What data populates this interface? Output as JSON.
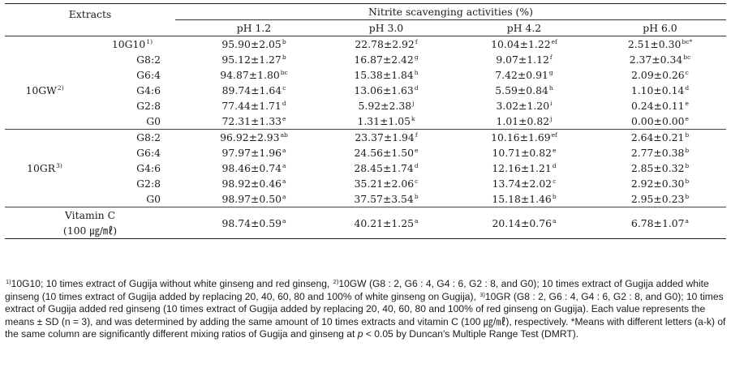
{
  "table": {
    "header": {
      "extracts_label": "Extracts",
      "group_label": "Nitrite scavenging activities (%)",
      "ph_columns": [
        "pH 1.2",
        "pH 3.0",
        "pH 4.2",
        "pH 6.0"
      ]
    },
    "row_10G10": {
      "label": "10G10",
      "sup": "1)",
      "cells": [
        {
          "v": "95.90±2.05",
          "s": "b"
        },
        {
          "v": "22.78±2.92",
          "s": "f"
        },
        {
          "v": "10.04±1.22",
          "s": "ef"
        },
        {
          "v": "2.51±0.30",
          "s": "bc*"
        }
      ]
    },
    "group_10GW": {
      "label": "10GW",
      "sup": "2)",
      "rows": [
        {
          "label": "G8:2",
          "cells": [
            {
              "v": "95.12±1.27",
              "s": "b"
            },
            {
              "v": "16.87±2.42",
              "s": "g"
            },
            {
              "v": "9.07±1.12",
              "s": "f"
            },
            {
              "v": "2.37±0.34",
              "s": "bc"
            }
          ]
        },
        {
          "label": "G6:4",
          "cells": [
            {
              "v": "94.87±1.80",
              "s": "bc"
            },
            {
              "v": "15.38±1.84",
              "s": "h"
            },
            {
              "v": "7.42±0.91",
              "s": "g"
            },
            {
              "v": "2.09±0.26",
              "s": "c"
            }
          ]
        },
        {
          "label": "G4:6",
          "cells": [
            {
              "v": "89.74±1.64",
              "s": "c"
            },
            {
              "v": "13.06±1.63",
              "s": "d"
            },
            {
              "v": "5.59±0.84",
              "s": "h"
            },
            {
              "v": "1.10±0.14",
              "s": "d"
            }
          ]
        },
        {
          "label": "G2:8",
          "cells": [
            {
              "v": "77.44±1.71",
              "s": "d"
            },
            {
              "v": "5.92±2.38",
              "s": "j"
            },
            {
              "v": "3.02±1.20",
              "s": "i"
            },
            {
              "v": "0.24±0.11",
              "s": "e"
            }
          ]
        },
        {
          "label": "G0",
          "cells": [
            {
              "v": "72.31±1.33",
              "s": "e"
            },
            {
              "v": "1.31±1.05",
              "s": "k"
            },
            {
              "v": "1.01±0.82",
              "s": "j"
            },
            {
              "v": "0.00±0.00",
              "s": "e"
            }
          ]
        }
      ]
    },
    "group_10GR": {
      "label": "10GR",
      "sup": "3)",
      "rows": [
        {
          "label": "G8:2",
          "cells": [
            {
              "v": "96.92±2.93",
              "s": "ab"
            },
            {
              "v": "23.37±1.94",
              "s": "f"
            },
            {
              "v": "10.16±1.69",
              "s": "ef"
            },
            {
              "v": "2.64±0.21",
              "s": "b"
            }
          ]
        },
        {
          "label": "G6:4",
          "cells": [
            {
              "v": "97.97±1.96",
              "s": "a"
            },
            {
              "v": "24.56±1.50",
              "s": "e"
            },
            {
              "v": "10.71±0.82",
              "s": "e"
            },
            {
              "v": "2.77±0.38",
              "s": "b"
            }
          ]
        },
        {
          "label": "G4:6",
          "cells": [
            {
              "v": "98.46±0.74",
              "s": "a"
            },
            {
              "v": "28.45±1.74",
              "s": "d"
            },
            {
              "v": "12.16±1.21",
              "s": "d"
            },
            {
              "v": "2.85±0.32",
              "s": "b"
            }
          ]
        },
        {
          "label": "G2:8",
          "cells": [
            {
              "v": "98.92±0.46",
              "s": "a"
            },
            {
              "v": "35.21±2.06",
              "s": "c"
            },
            {
              "v": "13.74±2.02",
              "s": "c"
            },
            {
              "v": "2.92±0.30",
              "s": "b"
            }
          ]
        },
        {
          "label": "G0",
          "cells": [
            {
              "v": "98.97±0.50",
              "s": "a"
            },
            {
              "v": "37.57±3.54",
              "s": "b"
            },
            {
              "v": "15.18±1.46",
              "s": "b"
            },
            {
              "v": "2.95±0.23",
              "s": "b"
            }
          ]
        }
      ]
    },
    "vitamin_c": {
      "label_line1": "Vitamin C",
      "label_line2": "(100 ㎍/㎖)",
      "cells": [
        {
          "v": "98.74±0.59",
          "s": "a"
        },
        {
          "v": "40.21±1.25",
          "s": "a"
        },
        {
          "v": "20.14±0.76",
          "s": "a"
        },
        {
          "v": "6.78±1.07",
          "s": "a"
        }
      ]
    }
  },
  "footnote": {
    "sup1": "1)",
    "seg1": "10G10; 10 times extract of Gugija without white ginseng and red ginseng, ",
    "sup2": "2)",
    "seg2": "10GW (G8 : 2, G6 : 4, G4 : 6, G2 : 8, and G0); 10 times extract of Gugija added white ginseng (10 times extract of Gugija added by replacing 20, 40, 60, 80 and 100% of white ginseng on Gugija), ",
    "sup3": "3)",
    "seg3": "10GR (G8 : 2, G6 : 4, G4 : 6, G2 : 8, and G0); 10 times extract of Gugija added red ginseng (10 times extract of Gugija added by replacing 20, 40, 60, 80 and 100% of red ginseng on Gugija). Each value represents the means ± SD (n = 3), and was determined by adding the same amount of 10 times extracts and vitamin C (100 ㎍/㎖), respectively. *Means with different letters (a-k) of the same column are significantly different mixing ratios of Gugija and ginseng at ",
    "p_italic": "p",
    "seg4": " < 0.05 by Duncan's Multiple Range Test (DMRT)."
  }
}
